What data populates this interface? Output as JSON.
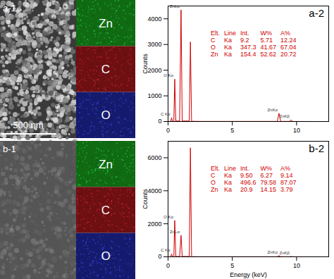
{
  "images": [
    {
      "label": "a-1",
      "maps": [
        "Zn",
        "C",
        "O"
      ],
      "scale_bar": "500 nm"
    },
    {
      "label": "b-1",
      "maps": [
        "Zn",
        "C",
        "O"
      ]
    }
  ],
  "chart_data": [
    {
      "type": "line",
      "title": "a-2",
      "ylabel": "Counts",
      "xlabel": null,
      "color": "#d00000",
      "x": [
        0,
        0.2,
        0.28,
        0.34,
        0.45,
        0.52,
        0.6,
        0.9,
        1.01,
        1.1,
        1.65,
        1.74,
        1.83,
        2.5,
        8.5,
        8.63,
        8.76,
        9.45,
        9.57,
        9.7,
        12.5
      ],
      "values": [
        0,
        5,
        150,
        5,
        5,
        1650,
        20,
        20,
        4350,
        20,
        20,
        3100,
        10,
        5,
        5,
        320,
        5,
        5,
        60,
        3,
        0
      ],
      "xlim": [
        0,
        12.5
      ],
      "xticks": [
        0,
        5,
        10
      ],
      "ylim": [
        0,
        4500
      ],
      "yticks": [
        0,
        1000,
        2000,
        3000,
        4000
      ],
      "annotations": [
        {
          "text": "C Kα",
          "x": 0.28,
          "y": 150
        },
        {
          "text": "O Kα",
          "x": 0.52,
          "y": 1650
        },
        {
          "text": "ZnLα",
          "x": 1.01,
          "y": 4350
        },
        {
          "text": "ZnKα",
          "x": 8.63,
          "y": 320
        },
        {
          "text": "ZnKβ",
          "x": 9.57,
          "y": 60
        }
      ],
      "table": {
        "columns": [
          "Elt.",
          "Line",
          "Int.",
          "W%",
          "A%"
        ],
        "rows": [
          [
            "C",
            "Ka",
            "9.2",
            "5.71",
            "12.24"
          ],
          [
            "O",
            "Ka",
            "347.3",
            "41.67",
            "67.04"
          ],
          [
            "Zn",
            "Ka",
            "154.4",
            "52.62",
            "20.72"
          ]
        ]
      }
    },
    {
      "type": "line",
      "title": "b-2",
      "ylabel": "Counts",
      "xlabel": "Energy (keV)",
      "color": "#d00000",
      "x": [
        0,
        0.2,
        0.28,
        0.34,
        0.45,
        0.52,
        0.6,
        0.9,
        1.01,
        1.1,
        1.65,
        1.74,
        1.83,
        2.5,
        8.5,
        8.63,
        8.76,
        9.45,
        9.57,
        9.7,
        12.5
      ],
      "values": [
        0,
        5,
        170,
        5,
        5,
        2200,
        20,
        20,
        1300,
        20,
        20,
        6600,
        10,
        5,
        5,
        70,
        5,
        5,
        20,
        3,
        0
      ],
      "xlim": [
        0,
        12.5
      ],
      "xticks": [
        0,
        5,
        10
      ],
      "ylim": [
        0,
        7000
      ],
      "yticks": [
        0,
        2000,
        4000,
        6000
      ],
      "annotations": [
        {
          "text": "C Kα",
          "x": 0.28,
          "y": 170
        },
        {
          "text": "O Kα",
          "x": 0.52,
          "y": 2200
        },
        {
          "text": "ZnLα",
          "x": 1.01,
          "y": 1300
        },
        {
          "text": "ZnKα",
          "x": 8.63,
          "y": 70
        },
        {
          "text": "ZnKβ",
          "x": 9.57,
          "y": 20
        }
      ],
      "table": {
        "columns": [
          "Elt.",
          "Line",
          "Int.",
          "W%",
          "A%"
        ],
        "rows": [
          [
            "C",
            "Ka",
            "9.50",
            "6.27",
            "9.14"
          ],
          [
            "O",
            "Ka",
            "496.6",
            "79.58",
            "87.07"
          ],
          [
            "Zn",
            "Ka",
            "20.9",
            "14.15",
            "3.79"
          ]
        ]
      }
    }
  ]
}
